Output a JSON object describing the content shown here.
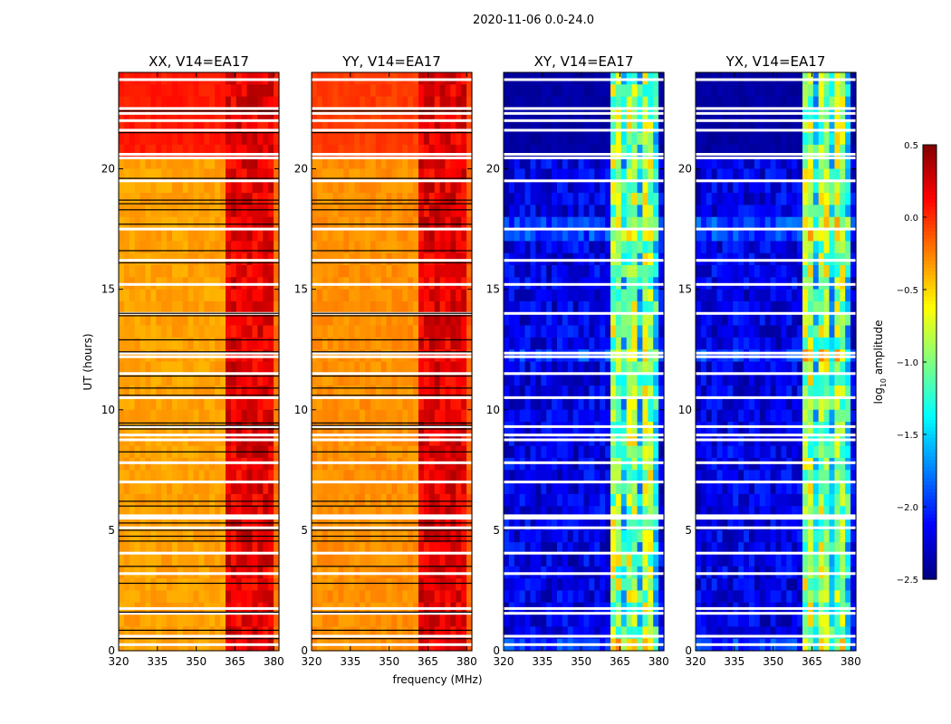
{
  "chart_data": {
    "type": "heatmap",
    "suptitle": "2020-11-06 0.0-24.0",
    "xlabel": "frequency (MHz)",
    "ylabel": "UT (hours)",
    "xlim": [
      320,
      382
    ],
    "ylim": [
      0,
      24
    ],
    "xticks": [
      "320",
      "335",
      "350",
      "365",
      "380"
    ],
    "xtick_values": [
      320,
      335,
      350,
      365,
      380
    ],
    "yticks": [
      "0",
      "5",
      "10",
      "15",
      "20"
    ],
    "ytick_values": [
      0,
      5,
      10,
      15,
      20
    ],
    "colorbar": {
      "label": "log10 amplitude",
      "label_prefix": "log",
      "label_sub": "10",
      "label_suffix": " amplitude",
      "range": [
        -2.5,
        0.5
      ],
      "ticks": [
        "0.5",
        "0.0",
        "−0.5",
        "−1.0",
        "−1.5",
        "−2.0",
        "−2.5"
      ],
      "tick_values": [
        0.5,
        0.0,
        -0.5,
        -1.0,
        -1.5,
        -2.0,
        -2.5
      ],
      "colormap": "jet"
    },
    "panels": [
      {
        "title": "XX, V14=EA17",
        "type": "parallel",
        "base_level": -0.35,
        "band_level": 0.2,
        "night_level": 0.05
      },
      {
        "title": "YY, V14=EA17",
        "type": "parallel",
        "base_level": -0.3,
        "band_level": 0.2,
        "night_level": -0.05
      },
      {
        "title": "XY, V14=EA17",
        "type": "cross",
        "base_level": -2.2,
        "band_level": -0.9,
        "night_level": -2.4
      },
      {
        "title": "YX, V14=EA17",
        "type": "cross",
        "base_level": -2.2,
        "band_level": -0.9,
        "night_level": -2.4
      }
    ],
    "rfi_band_mhz": [
      361,
      379
    ],
    "white_flag_hours": [
      0.25,
      0.6,
      1.55,
      1.75,
      3.2,
      4.05,
      5.1,
      5.5,
      5.6,
      7.0,
      7.8,
      8.75,
      8.95,
      9.3,
      10.5,
      11.5,
      12.2,
      12.35,
      14.0,
      15.2,
      16.2,
      17.5,
      19.5,
      20.45,
      20.6,
      21.6,
      22.0,
      22.3,
      22.5,
      23.7
    ],
    "black_flag_hours": [
      0.5,
      0.85,
      1.6,
      2.8,
      3.5,
      4.55,
      4.75,
      5.0,
      5.3,
      6.0,
      6.2,
      8.25,
      9.2,
      9.35,
      9.45,
      10.6,
      10.9,
      11.4,
      12.4,
      12.9,
      13.9,
      14.0,
      16.1,
      16.6,
      17.7,
      18.3,
      18.55,
      18.7,
      19.6,
      21.5,
      22.4
    ]
  }
}
